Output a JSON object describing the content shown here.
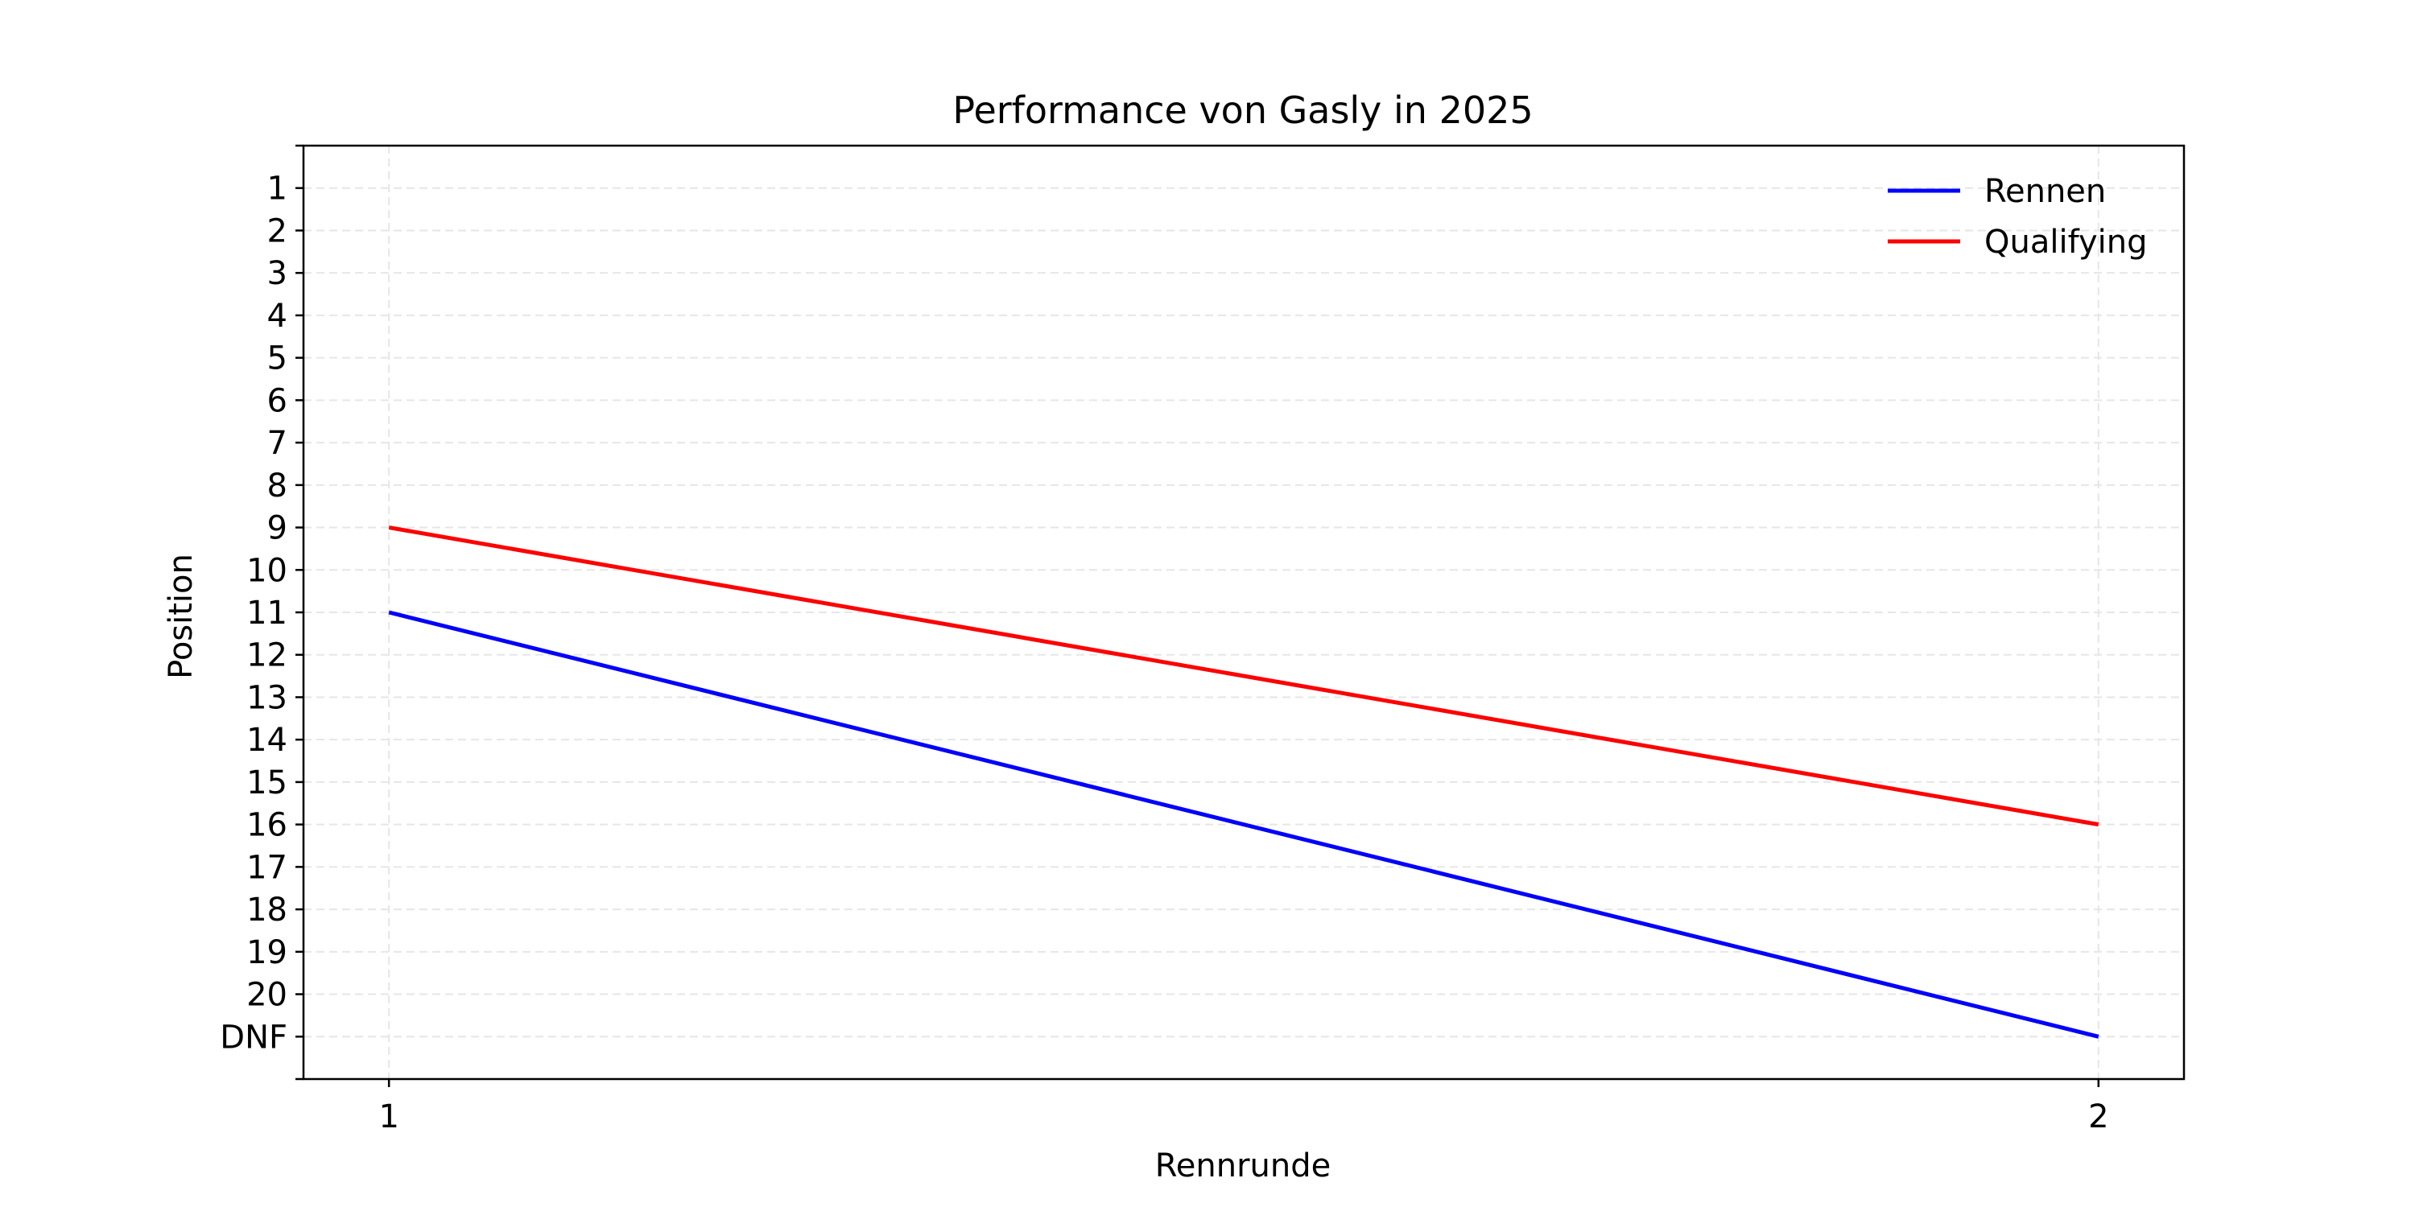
{
  "chart_data": {
    "type": "line",
    "title": "Performance von Gasly in 2025",
    "xlabel": "Rennrunde",
    "ylabel": "Position",
    "x": [
      1,
      2
    ],
    "x_tick_labels": [
      "1",
      "2"
    ],
    "y_tick_labels": [
      "1",
      "2",
      "3",
      "4",
      "5",
      "6",
      "7",
      "8",
      "9",
      "10",
      "11",
      "12",
      "13",
      "14",
      "15",
      "16",
      "17",
      "18",
      "19",
      "20",
      "DNF"
    ],
    "y_inverted": true,
    "xlim": [
      0.95,
      2.05
    ],
    "ylim": [
      22,
      0
    ],
    "grid": true,
    "legend_position": "top-right",
    "series": [
      {
        "name": "Rennen",
        "color": "#0000ff",
        "values": [
          "11",
          "DNF"
        ]
      },
      {
        "name": "Qualifying",
        "color": "#ff0000",
        "values": [
          "9",
          "16"
        ]
      }
    ]
  }
}
